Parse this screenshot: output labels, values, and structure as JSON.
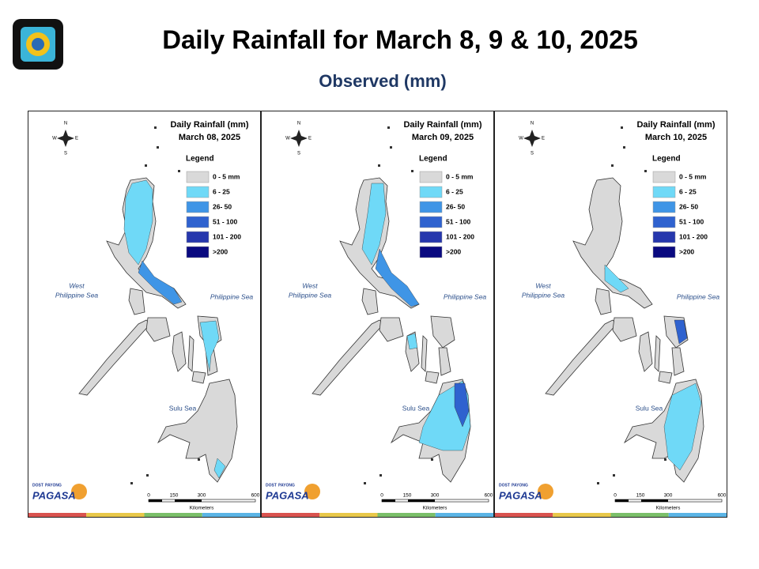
{
  "header": {
    "title": "Daily Rainfall for March 8, 9 & 10, 2025",
    "subtitle": "Observed (mm)"
  },
  "panels": [
    {
      "heading": "Daily Rainfall (mm)",
      "date": "March 08, 2025"
    },
    {
      "heading": "Daily Rainfall (mm)",
      "date": "March 09, 2025"
    },
    {
      "heading": "Daily Rainfall (mm)",
      "date": "March 10, 2025"
    }
  ],
  "legend": {
    "title": "Legend",
    "items": [
      {
        "label": "0 - 5 mm",
        "color": "#d9d9d9"
      },
      {
        "label": "6 - 25",
        "color": "#6fd9f7"
      },
      {
        "label": "26- 50",
        "color": "#3f95e6"
      },
      {
        "label": "51 - 100",
        "color": "#2f62cf"
      },
      {
        "label": "101 - 200",
        "color": "#2637ad"
      },
      {
        "label": ">200",
        "color": "#0a0a80"
      }
    ]
  },
  "seas": {
    "west": [
      "West",
      "Philippine Sea"
    ],
    "east": "Philippine Sea",
    "sulu": "Sulu Sea"
  },
  "scale": {
    "ticks": [
      "0",
      "150",
      "300",
      "600"
    ],
    "unit": "Kilometers"
  },
  "compass": [
    "N",
    "E",
    "S",
    "W"
  ],
  "logo": {
    "agency": "DOST",
    "brand": "PAYONG",
    "name": "PAGASA"
  }
}
